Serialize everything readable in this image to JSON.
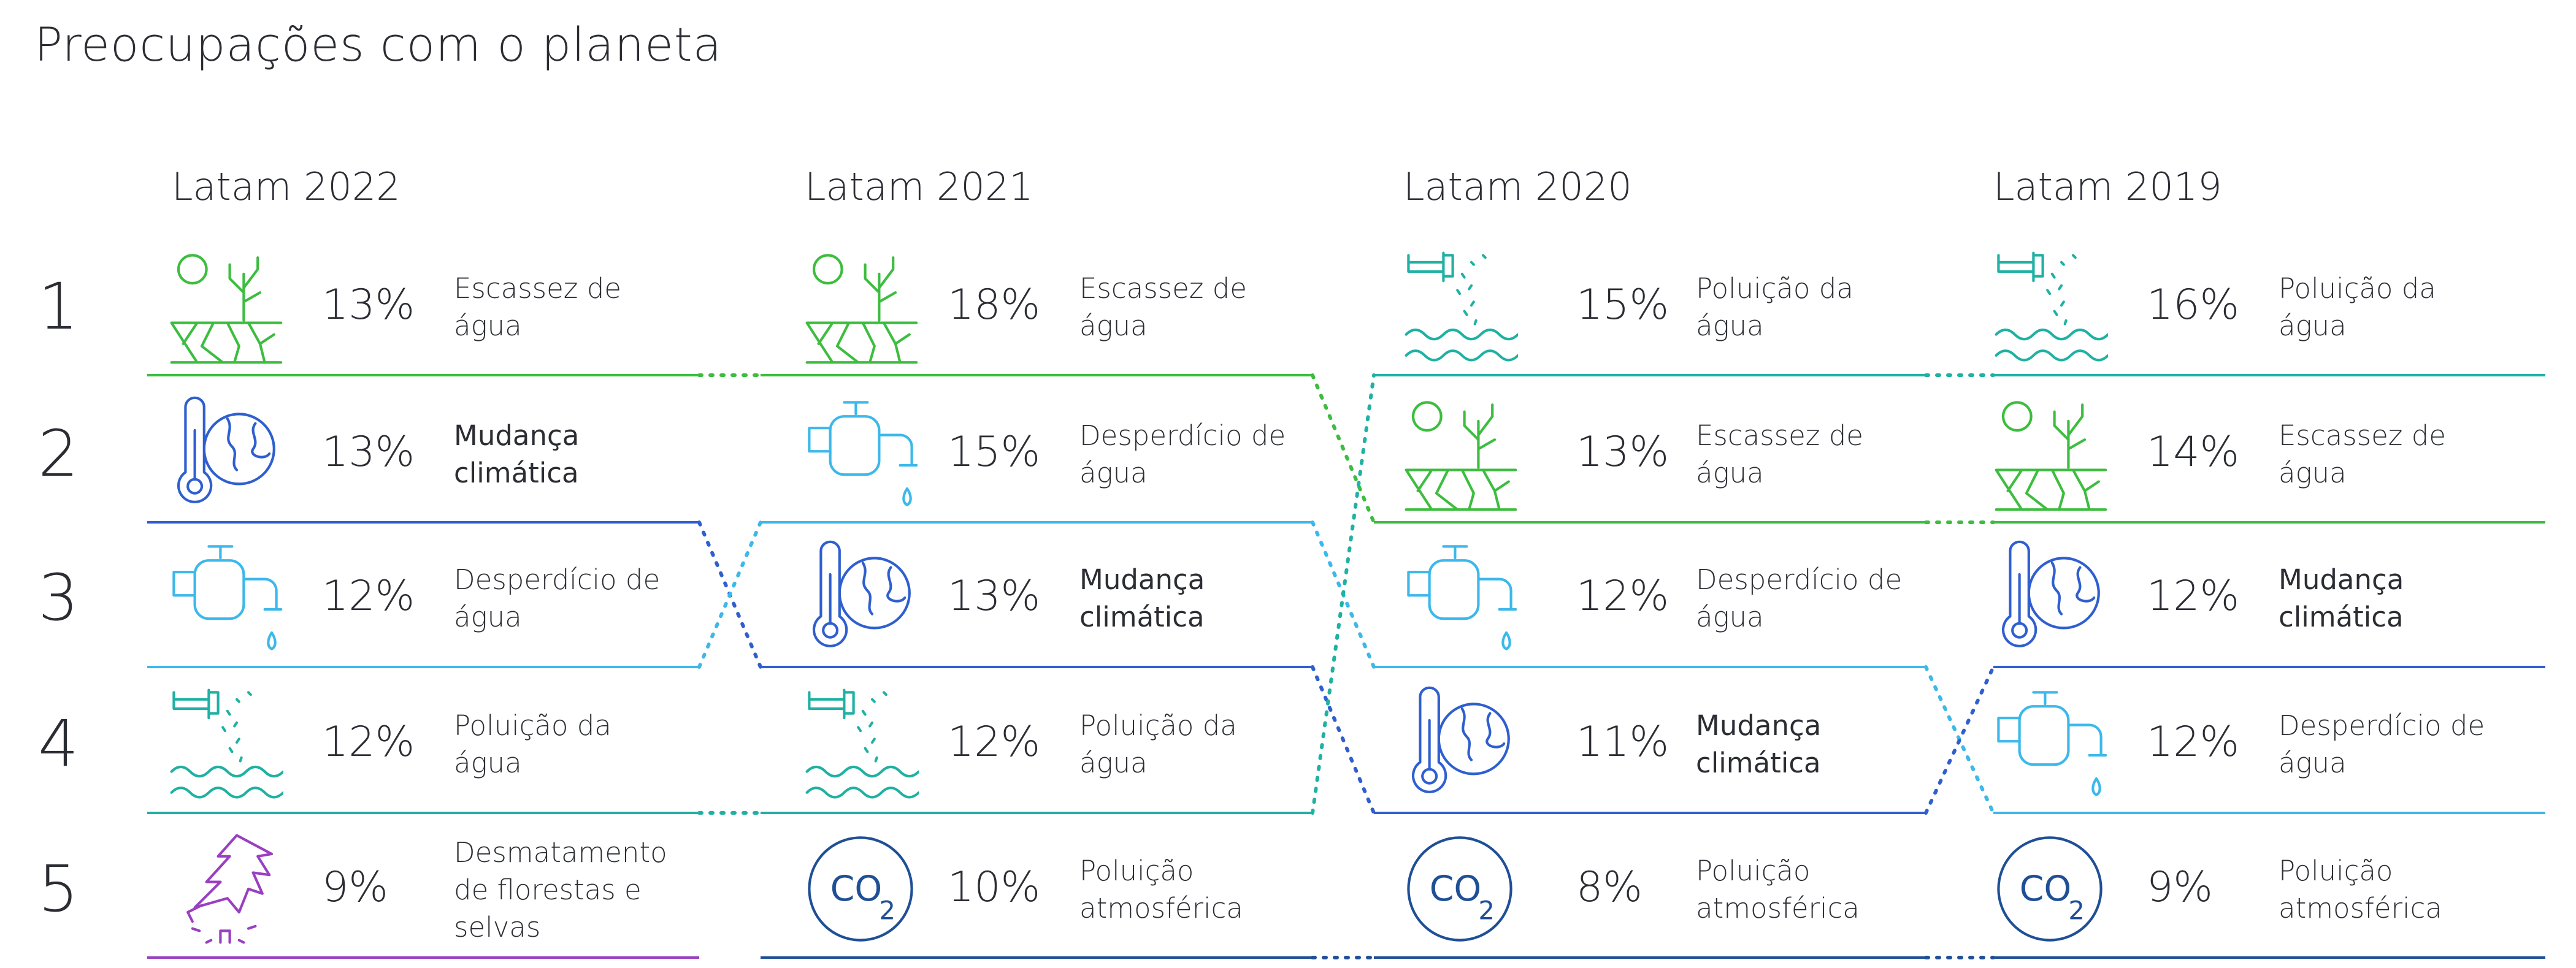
{
  "title": "Preocupações com o planeta",
  "ranks": [
    "1",
    "2",
    "3",
    "4",
    "5"
  ],
  "colors": {
    "scarcity": "#3dbd3f",
    "pollution": "#1fb1a3",
    "waste": "#3cb8ea",
    "climate": "#2f5fcf",
    "co2": "#1f4f96",
    "deforestation": "#9a3fc1"
  },
  "columns": [
    {
      "header": "Latam 2022",
      "items": [
        {
          "pct": "13%",
          "label": "Escassez de água",
          "icon": "dry-land-tree-icon",
          "color": "scarcity",
          "bold": false
        },
        {
          "pct": "13%",
          "label": "Mudança climática",
          "icon": "thermometer-globe-icon",
          "color": "climate",
          "bold": true
        },
        {
          "pct": "12%",
          "label": "Desperdício de água",
          "icon": "dripping-faucet-icon",
          "color": "waste",
          "bold": false
        },
        {
          "pct": "12%",
          "label": "Poluição da água",
          "icon": "polluted-water-pipe-icon",
          "color": "pollution",
          "bold": false
        },
        {
          "pct": "9%",
          "label": "Desmatamento de florestas e selvas",
          "icon": "cut-tree-icon",
          "color": "deforestation",
          "bold": false
        }
      ]
    },
    {
      "header": "Latam 2021",
      "items": [
        {
          "pct": "18%",
          "label": "Escassez de água",
          "icon": "dry-land-tree-icon",
          "color": "scarcity",
          "bold": false
        },
        {
          "pct": "15%",
          "label": "Desperdício de água",
          "icon": "dripping-faucet-icon",
          "color": "waste",
          "bold": false
        },
        {
          "pct": "13%",
          "label": "Mudança climática",
          "icon": "thermometer-globe-icon",
          "color": "climate",
          "bold": true
        },
        {
          "pct": "12%",
          "label": "Poluição da água",
          "icon": "polluted-water-pipe-icon",
          "color": "pollution",
          "bold": false
        },
        {
          "pct": "10%",
          "label": "Poluição atmosférica",
          "icon": "co2-icon",
          "color": "co2",
          "bold": false
        }
      ]
    },
    {
      "header": "Latam 2020",
      "items": [
        {
          "pct": "15%",
          "label": "Poluição da água",
          "icon": "polluted-water-pipe-icon",
          "color": "pollution",
          "bold": false
        },
        {
          "pct": "13%",
          "label": "Escassez de água",
          "icon": "dry-land-tree-icon",
          "color": "scarcity",
          "bold": false
        },
        {
          "pct": "12%",
          "label": "Desperdício de água",
          "icon": "dripping-faucet-icon",
          "color": "waste",
          "bold": false
        },
        {
          "pct": "11%",
          "label": "Mudança climática",
          "icon": "thermometer-globe-icon",
          "color": "climate",
          "bold": true
        },
        {
          "pct": "8%",
          "label": "Poluição atmosférica",
          "icon": "co2-icon",
          "color": "co2",
          "bold": false
        }
      ]
    },
    {
      "header": "Latam 2019",
      "items": [
        {
          "pct": "16%",
          "label": "Poluição da água",
          "icon": "polluted-water-pipe-icon",
          "color": "pollution",
          "bold": false
        },
        {
          "pct": "14%",
          "label": "Escassez de água",
          "icon": "dry-land-tree-icon",
          "color": "scarcity",
          "bold": false
        },
        {
          "pct": "12%",
          "label": "Mudança climática",
          "icon": "thermometer-globe-icon",
          "color": "climate",
          "bold": true
        },
        {
          "pct": "12%",
          "label": "Desperdício de água",
          "icon": "dripping-faucet-icon",
          "color": "waste",
          "bold": false
        },
        {
          "pct": "9%",
          "label": "Poluição atmosférica",
          "icon": "co2-icon",
          "color": "co2",
          "bold": false
        }
      ]
    }
  ]
}
